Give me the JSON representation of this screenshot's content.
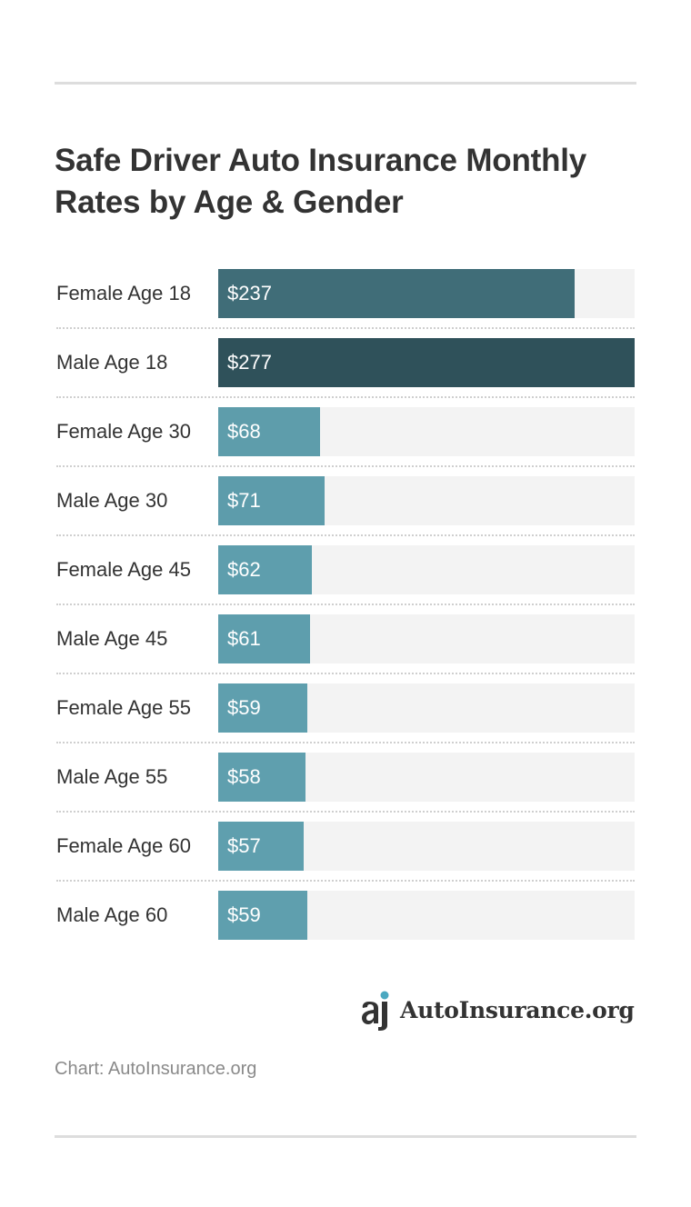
{
  "title": "Safe Driver Auto Insurance Monthly Rates by Age & Gender",
  "source": "Chart: AutoInsurance.org",
  "logo": {
    "text": "AutoInsurance.org",
    "icon": "autoinsurance-logo-icon"
  },
  "colors": {
    "bar_dark": "#2f515a",
    "bar_light": "#5f9fae",
    "track": "#f3f3f3",
    "accent_dot": "#4aa8c0"
  },
  "chart_data": {
    "type": "bar",
    "orientation": "horizontal",
    "title": "Safe Driver Auto Insurance Monthly Rates by Age & Gender",
    "categories": [
      "Female Age 18",
      "Male Age 18",
      "Female Age 30",
      "Male Age 30",
      "Female Age 45",
      "Male Age 45",
      "Female Age 55",
      "Male Age 55",
      "Female Age 60",
      "Male Age 60"
    ],
    "values": [
      237,
      277,
      68,
      71,
      62,
      61,
      59,
      58,
      57,
      59
    ],
    "value_labels": [
      "$237",
      "$277",
      "$68",
      "$71",
      "$62",
      "$61",
      "$59",
      "$58",
      "$57",
      "$59"
    ],
    "xlim": [
      0,
      277
    ],
    "xlabel": "",
    "ylabel": "",
    "grid": false,
    "legend": "none"
  }
}
